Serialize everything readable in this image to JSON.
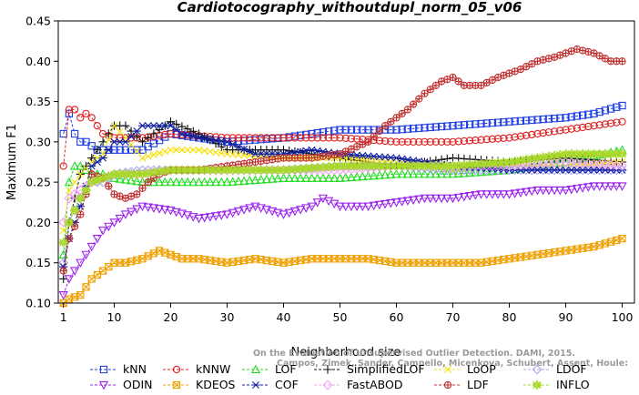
{
  "chart_data": {
    "type": "line",
    "title": "Cardiotocography_withoutdupl_norm_05_v06",
    "xlabel": "Neighborhood size",
    "ylabel": "Maximum F1",
    "xlim": [
      0,
      101
    ],
    "ylim": [
      0.1,
      0.45
    ],
    "xticks": [
      "1",
      "10",
      "20",
      "30",
      "40",
      "50",
      "60",
      "70",
      "80",
      "90",
      "100"
    ],
    "yticks": [
      "0.10",
      "0.15",
      "0.20",
      "0.25",
      "0.30",
      "0.35",
      "0.40",
      "0.45"
    ],
    "grid": false,
    "legend_position": "bottom",
    "watermark": [
      "Campos, Zimek, Sander, Campello, Micenkova, Schubert, Assent, Houle:",
      "On the Evaluation of Unsupervised Outlier Detection. DAMI, 2015."
    ],
    "series": [
      {
        "name": "kNN",
        "color": "#1f3fe0",
        "marker": "square",
        "points": [
          [
            1,
            0.31
          ],
          [
            2,
            0.335
          ],
          [
            3,
            0.31
          ],
          [
            4,
            0.3
          ],
          [
            5,
            0.3
          ],
          [
            7,
            0.29
          ],
          [
            10,
            0.29
          ],
          [
            15,
            0.29
          ],
          [
            20,
            0.31
          ],
          [
            25,
            0.305
          ],
          [
            30,
            0.3
          ],
          [
            40,
            0.305
          ],
          [
            50,
            0.315
          ],
          [
            60,
            0.315
          ],
          [
            70,
            0.32
          ],
          [
            80,
            0.325
          ],
          [
            90,
            0.33
          ],
          [
            95,
            0.335
          ],
          [
            100,
            0.345
          ]
        ]
      },
      {
        "name": "kNNW",
        "color": "#e02020",
        "marker": "circle",
        "points": [
          [
            1,
            0.27
          ],
          [
            2,
            0.34
          ],
          [
            3,
            0.34
          ],
          [
            4,
            0.33
          ],
          [
            5,
            0.335
          ],
          [
            6,
            0.33
          ],
          [
            8,
            0.31
          ],
          [
            10,
            0.305
          ],
          [
            15,
            0.305
          ],
          [
            20,
            0.31
          ],
          [
            30,
            0.305
          ],
          [
            40,
            0.305
          ],
          [
            50,
            0.305
          ],
          [
            60,
            0.3
          ],
          [
            70,
            0.3
          ],
          [
            80,
            0.305
          ],
          [
            90,
            0.315
          ],
          [
            100,
            0.325
          ]
        ]
      },
      {
        "name": "LOF",
        "color": "#22dd22",
        "marker": "triangle-up",
        "points": [
          [
            1,
            0.16
          ],
          [
            2,
            0.25
          ],
          [
            3,
            0.27
          ],
          [
            4,
            0.27
          ],
          [
            6,
            0.26
          ],
          [
            8,
            0.26
          ],
          [
            10,
            0.255
          ],
          [
            15,
            0.25
          ],
          [
            20,
            0.25
          ],
          [
            30,
            0.25
          ],
          [
            40,
            0.255
          ],
          [
            50,
            0.255
          ],
          [
            60,
            0.26
          ],
          [
            70,
            0.26
          ],
          [
            80,
            0.265
          ],
          [
            90,
            0.275
          ],
          [
            100,
            0.29
          ]
        ]
      },
      {
        "name": "SimplifiedLOF",
        "color": "#111111",
        "marker": "plus",
        "points": [
          [
            1,
            0.13
          ],
          [
            2,
            0.2
          ],
          [
            4,
            0.26
          ],
          [
            6,
            0.28
          ],
          [
            8,
            0.3
          ],
          [
            10,
            0.32
          ],
          [
            12,
            0.32
          ],
          [
            15,
            0.3
          ],
          [
            20,
            0.325
          ],
          [
            25,
            0.31
          ],
          [
            30,
            0.29
          ],
          [
            40,
            0.29
          ],
          [
            50,
            0.28
          ],
          [
            60,
            0.27
          ],
          [
            70,
            0.28
          ],
          [
            80,
            0.275
          ],
          [
            90,
            0.28
          ],
          [
            100,
            0.275
          ]
        ]
      },
      {
        "name": "LoOP",
        "color": "#f5e010",
        "marker": "x",
        "points": [
          [
            1,
            0.19
          ],
          [
            2,
            0.24
          ],
          [
            4,
            0.26
          ],
          [
            6,
            0.275
          ],
          [
            8,
            0.285
          ],
          [
            10,
            0.32
          ],
          [
            12,
            0.305
          ],
          [
            15,
            0.28
          ],
          [
            20,
            0.29
          ],
          [
            25,
            0.29
          ],
          [
            30,
            0.285
          ],
          [
            40,
            0.28
          ],
          [
            50,
            0.28
          ],
          [
            60,
            0.275
          ],
          [
            70,
            0.265
          ],
          [
            80,
            0.27
          ],
          [
            90,
            0.27
          ],
          [
            100,
            0.275
          ]
        ]
      },
      {
        "name": "LDOF",
        "color": "#a8a8ee",
        "marker": "diamond",
        "points": [
          [
            1,
            0.15
          ],
          [
            2,
            0.2
          ],
          [
            4,
            0.23
          ],
          [
            6,
            0.25
          ],
          [
            8,
            0.25
          ],
          [
            10,
            0.26
          ],
          [
            15,
            0.265
          ],
          [
            20,
            0.265
          ],
          [
            30,
            0.265
          ],
          [
            40,
            0.265
          ],
          [
            50,
            0.27
          ],
          [
            60,
            0.27
          ],
          [
            70,
            0.265
          ],
          [
            80,
            0.265
          ],
          [
            90,
            0.265
          ],
          [
            100,
            0.265
          ]
        ]
      },
      {
        "name": "ODIN",
        "color": "#9a22ee",
        "marker": "triangle-down",
        "points": [
          [
            1,
            0.11
          ],
          [
            2,
            0.13
          ],
          [
            4,
            0.15
          ],
          [
            6,
            0.17
          ],
          [
            8,
            0.19
          ],
          [
            10,
            0.2
          ],
          [
            12,
            0.21
          ],
          [
            15,
            0.22
          ],
          [
            20,
            0.215
          ],
          [
            25,
            0.205
          ],
          [
            30,
            0.21
          ],
          [
            35,
            0.22
          ],
          [
            40,
            0.21
          ],
          [
            45,
            0.22
          ],
          [
            47,
            0.23
          ],
          [
            50,
            0.22
          ],
          [
            55,
            0.22
          ],
          [
            60,
            0.225
          ],
          [
            65,
            0.23
          ],
          [
            70,
            0.23
          ],
          [
            75,
            0.235
          ],
          [
            80,
            0.235
          ],
          [
            85,
            0.24
          ],
          [
            90,
            0.24
          ],
          [
            95,
            0.245
          ],
          [
            100,
            0.245
          ]
        ]
      },
      {
        "name": "COF",
        "color": "#1020a0",
        "marker": "asterisk",
        "points": [
          [
            1,
            0.145
          ],
          [
            2,
            0.18
          ],
          [
            3,
            0.2
          ],
          [
            4,
            0.22
          ],
          [
            6,
            0.27
          ],
          [
            8,
            0.28
          ],
          [
            10,
            0.3
          ],
          [
            12,
            0.3
          ],
          [
            15,
            0.32
          ],
          [
            20,
            0.32
          ],
          [
            22,
            0.31
          ],
          [
            25,
            0.305
          ],
          [
            30,
            0.3
          ],
          [
            35,
            0.285
          ],
          [
            40,
            0.285
          ],
          [
            45,
            0.29
          ],
          [
            50,
            0.285
          ],
          [
            60,
            0.28
          ],
          [
            70,
            0.27
          ],
          [
            80,
            0.265
          ],
          [
            90,
            0.265
          ],
          [
            100,
            0.265
          ]
        ]
      },
      {
        "name": "KDEOS",
        "color": "#f0a000",
        "marker": "square-x",
        "points": [
          [
            1,
            0.1
          ],
          [
            2,
            0.105
          ],
          [
            4,
            0.11
          ],
          [
            6,
            0.13
          ],
          [
            8,
            0.14
          ],
          [
            10,
            0.15
          ],
          [
            12,
            0.15
          ],
          [
            15,
            0.155
          ],
          [
            18,
            0.165
          ],
          [
            20,
            0.16
          ],
          [
            22,
            0.155
          ],
          [
            25,
            0.155
          ],
          [
            30,
            0.15
          ],
          [
            35,
            0.155
          ],
          [
            40,
            0.15
          ],
          [
            45,
            0.155
          ],
          [
            50,
            0.155
          ],
          [
            55,
            0.155
          ],
          [
            60,
            0.15
          ],
          [
            65,
            0.15
          ],
          [
            70,
            0.15
          ],
          [
            75,
            0.15
          ],
          [
            80,
            0.155
          ],
          [
            85,
            0.16
          ],
          [
            90,
            0.165
          ],
          [
            95,
            0.17
          ],
          [
            100,
            0.18
          ]
        ]
      },
      {
        "name": "FastABOD",
        "color": "#f0a0f0",
        "marker": "diamond",
        "points": [
          [
            1,
            0.2
          ],
          [
            2,
            0.23
          ],
          [
            4,
            0.24
          ],
          [
            6,
            0.25
          ],
          [
            8,
            0.255
          ],
          [
            10,
            0.26
          ],
          [
            15,
            0.26
          ],
          [
            20,
            0.265
          ],
          [
            30,
            0.265
          ],
          [
            40,
            0.265
          ],
          [
            50,
            0.265
          ],
          [
            60,
            0.27
          ],
          [
            70,
            0.27
          ],
          [
            80,
            0.27
          ],
          [
            90,
            0.275
          ],
          [
            100,
            0.27
          ]
        ]
      },
      {
        "name": "LDF",
        "color": "#c03030",
        "marker": "circle-plus",
        "points": [
          [
            1,
            0.14
          ],
          [
            2,
            0.18
          ],
          [
            4,
            0.21
          ],
          [
            6,
            0.26
          ],
          [
            8,
            0.255
          ],
          [
            10,
            0.235
          ],
          [
            12,
            0.23
          ],
          [
            14,
            0.235
          ],
          [
            16,
            0.25
          ],
          [
            18,
            0.26
          ],
          [
            20,
            0.265
          ],
          [
            25,
            0.265
          ],
          [
            30,
            0.27
          ],
          [
            40,
            0.28
          ],
          [
            45,
            0.28
          ],
          [
            50,
            0.285
          ],
          [
            55,
            0.3
          ],
          [
            58,
            0.32
          ],
          [
            62,
            0.34
          ],
          [
            65,
            0.36
          ],
          [
            68,
            0.375
          ],
          [
            70,
            0.38
          ],
          [
            72,
            0.37
          ],
          [
            75,
            0.37
          ],
          [
            78,
            0.38
          ],
          [
            82,
            0.39
          ],
          [
            85,
            0.4
          ],
          [
            88,
            0.405
          ],
          [
            92,
            0.415
          ],
          [
            95,
            0.41
          ],
          [
            98,
            0.4
          ],
          [
            100,
            0.4
          ]
        ]
      },
      {
        "name": "INFLO",
        "color": "#a8d828",
        "marker": "star",
        "points": [
          [
            1,
            0.175
          ],
          [
            2,
            0.2
          ],
          [
            4,
            0.23
          ],
          [
            6,
            0.25
          ],
          [
            8,
            0.255
          ],
          [
            10,
            0.26
          ],
          [
            15,
            0.26
          ],
          [
            20,
            0.265
          ],
          [
            30,
            0.265
          ],
          [
            40,
            0.265
          ],
          [
            50,
            0.27
          ],
          [
            60,
            0.27
          ],
          [
            70,
            0.27
          ],
          [
            80,
            0.275
          ],
          [
            90,
            0.285
          ],
          [
            100,
            0.285
          ]
        ]
      }
    ],
    "legend_rows": [
      [
        "kNN",
        "kNNW",
        "LOF",
        "SimplifiedLOF",
        "LoOP",
        "LDOF"
      ],
      [
        "ODIN",
        "KDEOS",
        "COF",
        "FastABOD",
        "LDF",
        "INFLO"
      ]
    ]
  }
}
